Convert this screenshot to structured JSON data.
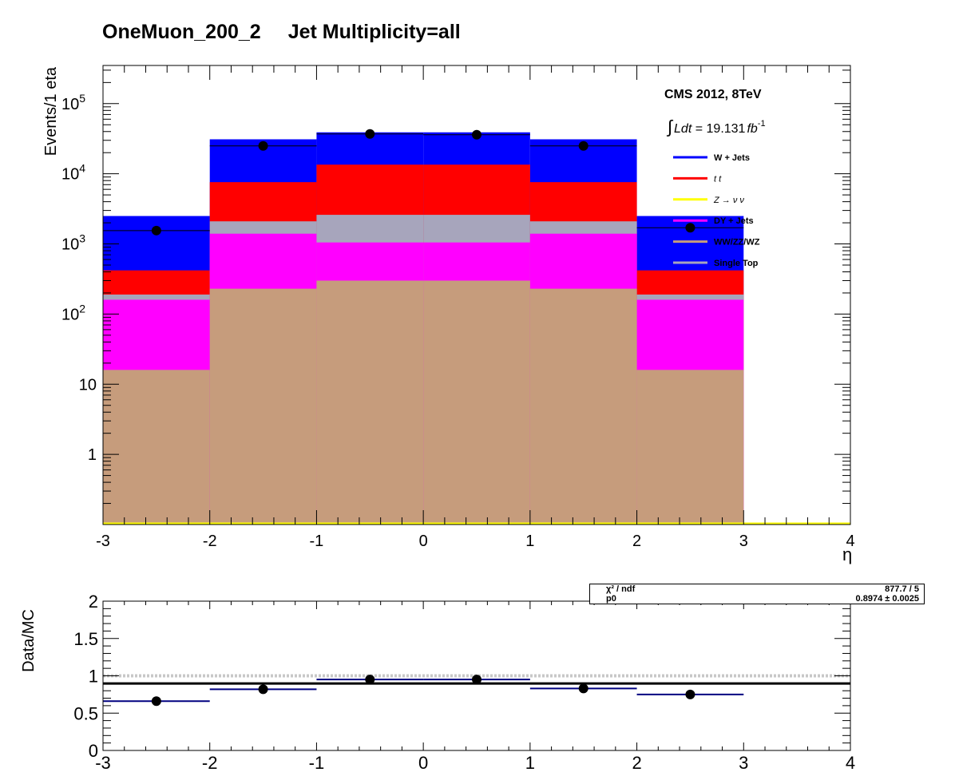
{
  "title": {
    "part1": "OneMuon_200_2",
    "part2": "Jet Multiplicity=all"
  },
  "annotations": {
    "experiment": "CMS 2012, 8TeV",
    "lumi_value": "19.131",
    "lumi_unit": "fb",
    "lumi_exp": "-1"
  },
  "colors": {
    "wjets": "#0000ff",
    "ttbar": "#ff0000",
    "znunu": "#ffff00",
    "dyjets": "#ff00ff",
    "diboson": "#c69c7c",
    "singletop": "#a7a5bc",
    "data": "#000000",
    "ratio_err": "#000080"
  },
  "legend": {
    "placement": "top-right",
    "entries": [
      {
        "key": "wjets",
        "label": "W + Jets"
      },
      {
        "key": "ttbar",
        "label": "t  t"
      },
      {
        "key": "znunu",
        "label": "Z → ν  ν"
      },
      {
        "key": "dyjets",
        "label": "DY + Jets"
      },
      {
        "key": "diboson",
        "label": "WW/ZZ/WZ"
      },
      {
        "key": "singletop",
        "label": "Single Top"
      }
    ]
  },
  "fit": {
    "chi2_label": "χ² / ndf",
    "chi2_value": "877.7 / 5",
    "p0_label": "p0",
    "p0_value": "0.8974 ± 0.0025"
  },
  "chart_data": [
    {
      "type": "bar",
      "subtype": "stacked-histogram",
      "scale": "log",
      "xlabel": "η",
      "ylabel": "Events/1 eta",
      "xlim": [
        -3,
        4
      ],
      "ylim": [
        0.1,
        350000
      ],
      "x_ticks": [
        "-3",
        "-2",
        "-1",
        "0",
        "1",
        "2",
        "3",
        "4"
      ],
      "y_ticks": [
        {
          "v": 1,
          "label": "1"
        },
        {
          "v": 10,
          "label": "10"
        },
        {
          "v": 100,
          "base": "10",
          "exp": "2"
        },
        {
          "v": 1000,
          "base": "10",
          "exp": "3"
        },
        {
          "v": 10000,
          "base": "10",
          "exp": "4"
        },
        {
          "v": 100000,
          "base": "10",
          "exp": "5"
        }
      ],
      "bins": [
        [
          -3,
          -2
        ],
        [
          -2,
          -1
        ],
        [
          -1,
          0
        ],
        [
          0,
          1
        ],
        [
          1,
          2
        ],
        [
          2,
          3
        ]
      ],
      "stack_order": [
        "diboson",
        "dyjets",
        "singletop",
        "ttbar",
        "wjets"
      ],
      "cumulative": {
        "diboson": [
          16,
          230,
          300,
          300,
          230,
          16
        ],
        "dyjets": [
          160,
          1400,
          1050,
          1050,
          1400,
          160
        ],
        "singletop": [
          190,
          2100,
          2600,
          2600,
          2100,
          190
        ],
        "ttbar": [
          420,
          7600,
          13500,
          13500,
          7600,
          420
        ],
        "wjets": [
          2500,
          31000,
          39000,
          39000,
          31000,
          2500
        ]
      },
      "data": {
        "x": [
          -2.5,
          -1.5,
          -0.5,
          0.5,
          1.5,
          2.5
        ],
        "y": [
          1550,
          25000,
          37000,
          36000,
          25000,
          1700
        ]
      }
    },
    {
      "type": "scatter",
      "subtype": "ratio",
      "xlabel": "",
      "ylabel": "Data/MC",
      "xlim": [
        -3,
        4
      ],
      "ylim": [
        0,
        2
      ],
      "x_ticks": [
        "-3",
        "-2",
        "-1",
        "0",
        "1",
        "2",
        "3",
        "4"
      ],
      "y_ticks": [
        {
          "v": 0,
          "label": "0"
        },
        {
          "v": 0.5,
          "label": "0.5"
        },
        {
          "v": 1,
          "label": "1"
        },
        {
          "v": 1.5,
          "label": "1.5"
        },
        {
          "v": 2,
          "label": "2"
        }
      ],
      "x": [
        -2.5,
        -1.5,
        -0.5,
        0.5,
        1.5,
        2.5
      ],
      "y": [
        0.66,
        0.82,
        0.95,
        0.95,
        0.83,
        0.75
      ],
      "fit_value": 0.8974,
      "reference": 1
    }
  ]
}
